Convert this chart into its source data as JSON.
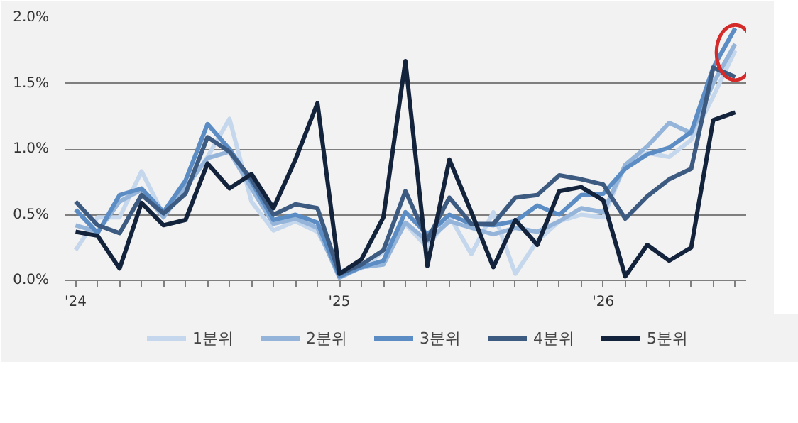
{
  "chart_data": {
    "type": "line",
    "categories": [
      "'24",
      null,
      null,
      null,
      null,
      null,
      null,
      null,
      null,
      null,
      null,
      null,
      "'25",
      null,
      null,
      null,
      null,
      null,
      null,
      null,
      null,
      null,
      null,
      null,
      "'26",
      null,
      null,
      null,
      null,
      null,
      null
    ],
    "series": [
      {
        "name": "1분위",
        "color": "#c5d7ec",
        "values": [
          0.23,
          0.48,
          0.48,
          0.83,
          0.5,
          0.7,
          0.94,
          1.23,
          0.6,
          0.38,
          0.45,
          0.37,
          0.07,
          0.09,
          0.22,
          0.43,
          0.25,
          0.49,
          0.2,
          0.52,
          0.05,
          0.3,
          0.45,
          0.5,
          0.48,
          0.88,
          0.97,
          0.94,
          1.07,
          1.4,
          1.75
        ]
      },
      {
        "name": "2분위",
        "color": "#94b4da",
        "values": [
          0.42,
          0.37,
          0.6,
          0.69,
          0.48,
          0.71,
          0.93,
          0.98,
          0.7,
          0.43,
          0.47,
          0.4,
          0.02,
          0.1,
          0.12,
          0.44,
          0.3,
          0.45,
          0.4,
          0.35,
          0.4,
          0.37,
          0.45,
          0.55,
          0.52,
          0.88,
          1.02,
          1.2,
          1.12,
          1.5,
          1.8
        ]
      },
      {
        "name": "3분위",
        "color": "#5b8cc4",
        "values": [
          0.54,
          0.36,
          0.65,
          0.7,
          0.52,
          0.76,
          1.19,
          1.0,
          0.75,
          0.46,
          0.5,
          0.44,
          0.03,
          0.1,
          0.15,
          0.52,
          0.35,
          0.5,
          0.43,
          0.42,
          0.45,
          0.57,
          0.5,
          0.65,
          0.66,
          0.85,
          0.96,
          1.01,
          1.13,
          1.62,
          1.92
        ]
      },
      {
        "name": "4분위",
        "color": "#3d5a80",
        "values": [
          0.6,
          0.42,
          0.36,
          0.65,
          0.51,
          0.66,
          1.09,
          0.98,
          0.77,
          0.5,
          0.58,
          0.55,
          0.05,
          0.12,
          0.23,
          0.68,
          0.31,
          0.63,
          0.43,
          0.43,
          0.63,
          0.65,
          0.8,
          0.77,
          0.73,
          0.47,
          0.64,
          0.77,
          0.85,
          1.62,
          1.55
        ]
      },
      {
        "name": "5분위",
        "color": "#14233c",
        "values": [
          0.37,
          0.34,
          0.09,
          0.59,
          0.42,
          0.46,
          0.89,
          0.7,
          0.81,
          0.55,
          0.92,
          1.35,
          0.05,
          0.16,
          0.48,
          1.67,
          0.11,
          0.92,
          0.52,
          0.1,
          0.46,
          0.27,
          0.68,
          0.71,
          0.61,
          0.03,
          0.27,
          0.15,
          0.25,
          1.22,
          1.28
        ]
      }
    ],
    "ylim": [
      0,
      2.0
    ],
    "yticks": [
      {
        "value": 0,
        "label": "0.0%"
      },
      {
        "value": 0.5,
        "label": "0.5%"
      },
      {
        "value": 1.0,
        "label": "1.0%"
      },
      {
        "value": 1.5,
        "label": "1.5%"
      },
      {
        "value": 2.0,
        "label": "2.0%"
      }
    ],
    "grid": "y",
    "legend": "bottom",
    "marker": "none",
    "line_style": "solid"
  }
}
